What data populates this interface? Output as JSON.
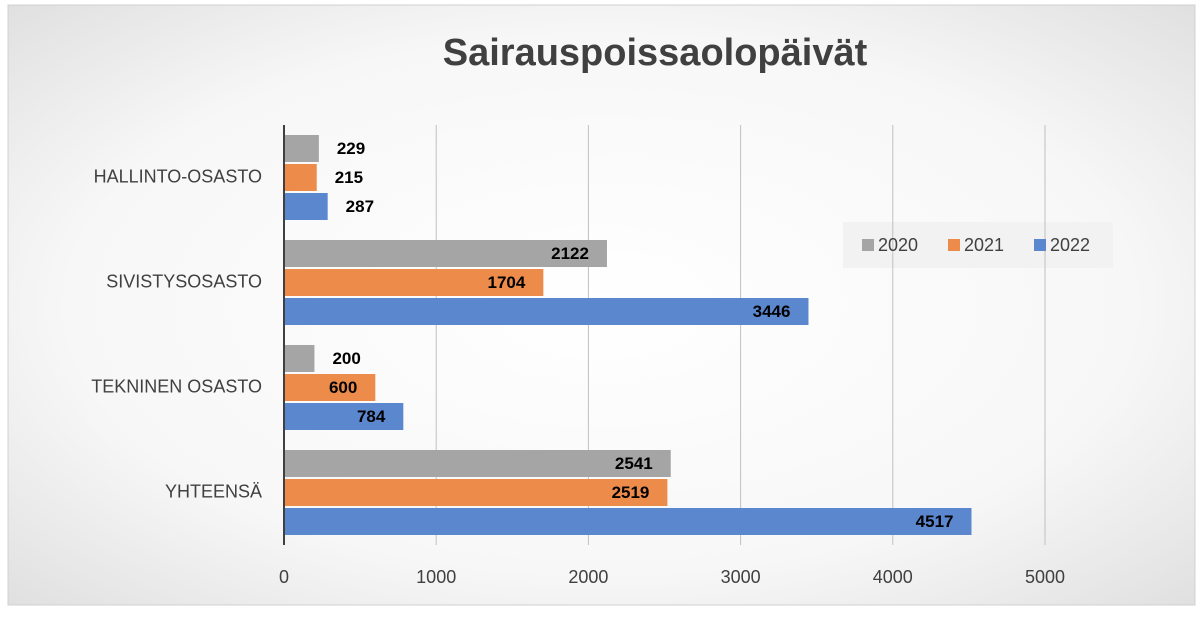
{
  "chart_data": {
    "type": "hbar",
    "title": "Sairauspoissaolopäivät",
    "categories": [
      "HALLINTO-OSASTO",
      "SIVISTYSOSASTO",
      "TEKNINEN OSASTO",
      "YHTEENSÄ"
    ],
    "series": [
      {
        "name": "2020",
        "color": "#a5a5a5",
        "values": [
          229,
          2122,
          200,
          2541
        ]
      },
      {
        "name": "2021",
        "color": "#ed8c4a",
        "values": [
          215,
          1704,
          600,
          2519
        ]
      },
      {
        "name": "2022",
        "color": "#5b87cf",
        "values": [
          287,
          3446,
          784,
          4517
        ]
      }
    ],
    "xlim": [
      0,
      5000
    ],
    "xticks": [
      0,
      1000,
      2000,
      3000,
      4000,
      5000
    ],
    "grid": true,
    "legend": "right"
  }
}
